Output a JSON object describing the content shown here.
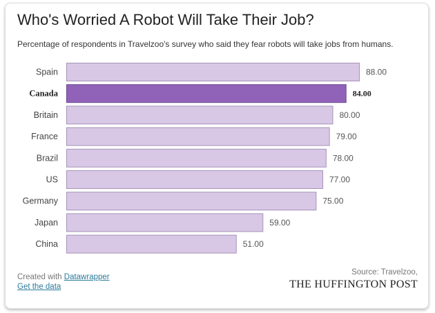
{
  "chart_data": {
    "type": "bar",
    "orientation": "horizontal",
    "title": "Who's Worried A Robot Will Take Their Job?",
    "subtitle": "Percentage of respondents in Travelzoo's survey who said they fear robots will take jobs from humans.",
    "categories": [
      "Spain",
      "Canada",
      "Britain",
      "France",
      "Brazil",
      "US",
      "Germany",
      "Japan",
      "China"
    ],
    "values": [
      88,
      84,
      80,
      79,
      78,
      77,
      75,
      59,
      51
    ],
    "value_labels": [
      "88.00",
      "84.00",
      "80.00",
      "79.00",
      "78.00",
      "77.00",
      "75.00",
      "59.00",
      "51.00"
    ],
    "highlight": "Canada",
    "xlim": [
      0,
      88
    ],
    "grid": false,
    "colors": {
      "bar": "#d8c8e6",
      "bar_border": "#a592b8",
      "highlight": "#9063b8",
      "highlight_border": "#6b4590"
    }
  },
  "footer": {
    "created_with": "Created with",
    "datawrapper_link": "Datawrapper",
    "get_data_link": "Get the data",
    "source": "Source: Travelzoo,",
    "logo": "THE HUFFINGTON POST"
  }
}
